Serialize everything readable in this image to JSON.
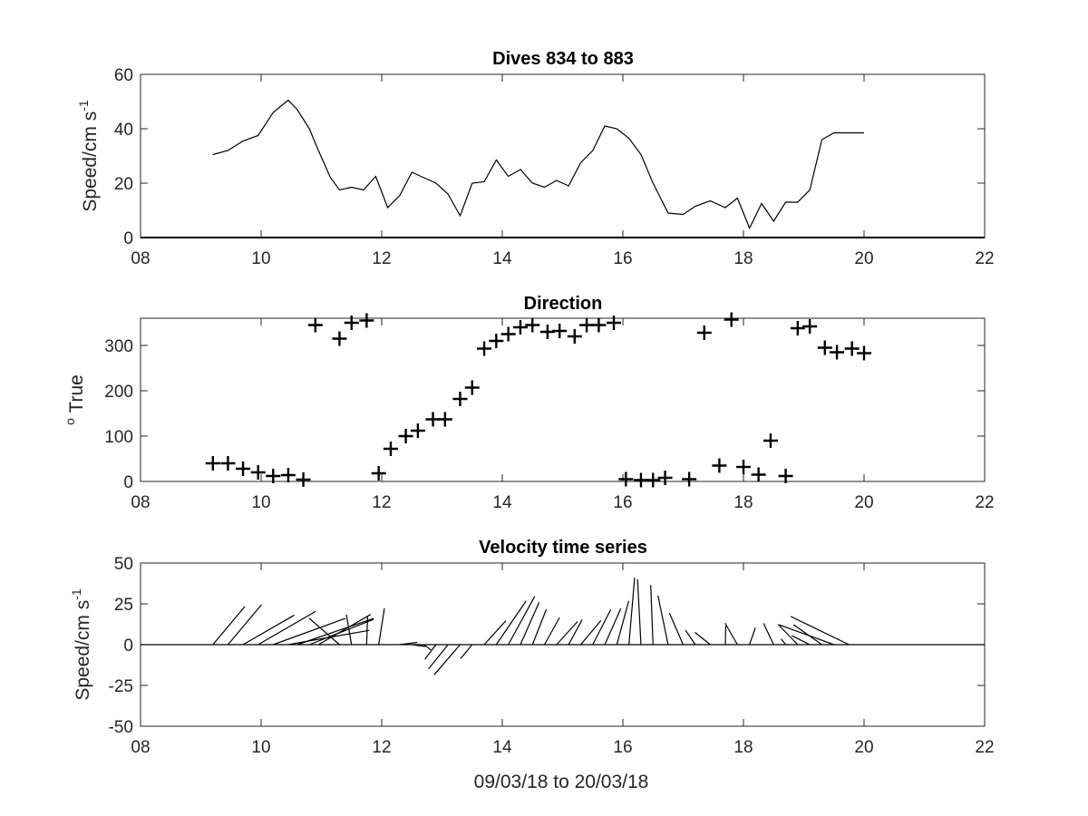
{
  "chart_data": [
    {
      "type": "line",
      "title": "Dives 834 to 883",
      "ylabel_main": "Speed/cm s",
      "ylabel_sup": "-1",
      "xlabel": "",
      "xlim": [
        8,
        22
      ],
      "ylim": [
        0,
        60
      ],
      "xticks": [
        8,
        10,
        12,
        14,
        16,
        18,
        20,
        22
      ],
      "xtick_labels": [
        "08",
        "10",
        "12",
        "14",
        "16",
        "18",
        "20",
        "22"
      ],
      "yticks": [
        0,
        20,
        40,
        60
      ],
      "ytick_labels": [
        "0",
        "20",
        "40",
        "60"
      ],
      "baseline": 0,
      "series": [
        {
          "x": [
            9.2,
            9.45,
            9.7,
            9.95,
            10.2,
            10.45,
            10.6,
            10.8,
            10.95,
            11.15,
            11.3,
            11.5,
            11.7,
            11.9,
            12.1,
            12.3,
            12.5,
            12.7,
            12.9,
            13.1,
            13.3,
            13.5,
            13.7,
            13.9,
            14.1,
            14.3,
            14.5,
            14.7,
            14.9,
            15.1,
            15.3,
            15.5,
            15.7,
            15.9,
            16.1,
            16.3,
            16.5,
            16.75,
            17.0,
            17.2,
            17.45,
            17.7,
            17.9,
            18.1,
            18.3,
            18.5,
            18.7,
            18.9,
            19.1,
            19.3,
            19.5,
            19.75,
            20.0
          ],
          "y": [
            30.5,
            32,
            35.5,
            37.5,
            46,
            50.5,
            47,
            40,
            32,
            22,
            17.5,
            18.5,
            17.5,
            22.5,
            11,
            15.5,
            24,
            22,
            20,
            16,
            8,
            20,
            20.5,
            28.5,
            22.5,
            25,
            20,
            18.5,
            21,
            19,
            27.5,
            32,
            41,
            40,
            36.5,
            30.5,
            20,
            9,
            8.5,
            11.5,
            13.5,
            11,
            14.5,
            3.5,
            12.5,
            6,
            13,
            13,
            17.5,
            36,
            38.5,
            38.5,
            38.5
          ]
        }
      ]
    },
    {
      "type": "scatter",
      "title": "Direction",
      "ylabel_sup": "o",
      "ylabel_main": " True",
      "xlabel": "",
      "xlim": [
        8,
        22
      ],
      "ylim": [
        0,
        360
      ],
      "xticks": [
        8,
        10,
        12,
        14,
        16,
        18,
        20,
        22
      ],
      "xtick_labels": [
        "08",
        "10",
        "12",
        "14",
        "16",
        "18",
        "20",
        "22"
      ],
      "yticks": [
        0,
        100,
        200,
        300
      ],
      "ytick_labels": [
        "0",
        "100",
        "200",
        "300"
      ],
      "marker": "+",
      "series": [
        {
          "x": [
            9.2,
            9.45,
            9.7,
            9.95,
            10.2,
            10.45,
            10.7,
            10.9,
            11.3,
            11.5,
            11.75,
            11.95,
            12.15,
            12.4,
            12.6,
            12.85,
            13.05,
            13.3,
            13.5,
            13.7,
            13.9,
            14.1,
            14.3,
            14.5,
            14.75,
            14.95,
            15.2,
            15.4,
            15.6,
            15.85,
            16.05,
            16.3,
            16.5,
            16.7,
            17.1,
            17.35,
            17.6,
            17.8,
            18.0,
            18.25,
            18.45,
            18.7,
            18.9,
            19.1,
            19.35,
            19.55,
            19.8,
            20.0
          ],
          "y": [
            40,
            40,
            28,
            20,
            12,
            14,
            4,
            345,
            315,
            350,
            355,
            18,
            72,
            100,
            112,
            137,
            137,
            182,
            207,
            293,
            310,
            325,
            340,
            345,
            330,
            332,
            320,
            345,
            345,
            350,
            5,
            3,
            3,
            8,
            5,
            328,
            35,
            357,
            32,
            15,
            90,
            12,
            338,
            342,
            295,
            285,
            293,
            283
          ]
        }
      ]
    },
    {
      "type": "line",
      "subtype": "stick",
      "title": "Velocity time series",
      "ylabel_main": "Speed/cm s",
      "ylabel_sup": "-1",
      "xlabel": "09/03/18 to 20/03/18",
      "xlim": [
        8,
        22
      ],
      "ylim": [
        -50,
        50
      ],
      "xticks": [
        8,
        10,
        12,
        14,
        16,
        18,
        20,
        22
      ],
      "xtick_labels": [
        "08",
        "10",
        "12",
        "14",
        "16",
        "18",
        "20",
        "22"
      ],
      "yticks": [
        -50,
        -25,
        0,
        25,
        50
      ],
      "ytick_labels": [
        "-50",
        "-25",
        "0",
        "25",
        "50"
      ],
      "baseline": 0,
      "series": [
        {
          "x": [
            9.2,
            9.45,
            9.7,
            9.95,
            10.2,
            10.45,
            10.6,
            10.8,
            10.95,
            11.3,
            11.5,
            11.75,
            11.95,
            12.3,
            12.5,
            12.7,
            12.9,
            13.1,
            13.3,
            13.5,
            13.7,
            13.9,
            14.1,
            14.3,
            14.5,
            14.7,
            14.9,
            15.1,
            15.3,
            15.5,
            15.7,
            15.9,
            16.1,
            16.3,
            16.5,
            16.75,
            17.0,
            17.2,
            17.45,
            17.7,
            17.9,
            18.1,
            18.5,
            18.7,
            18.9,
            19.1,
            19.3,
            19.5,
            19.75
          ],
          "u": [
            19.6,
            20.6,
            31.4,
            35.3,
            44.2,
            49.7,
            46.8,
            39.4,
            32.0,
            -18.7,
            -3.2,
            0.6,
            3.5,
            10.7,
            8.3,
            4.4,
            -6.8,
            -12.0,
            -15.9,
            -7.1,
            13.3,
            18.3,
            16.2,
            11.5,
            8.5,
            9.2,
            12.9,
            8.3,
            12.4,
            11.1,
            9.8,
            7.3,
            3.5,
            -2.1,
            -1.4,
            -6.2,
            -8.4,
            -6.0,
            -9.4,
            0.2,
            -7.6,
            3.6,
            -6.2,
            -2.7,
            -12.1,
            -11.1,
            -17.3,
            -33.4,
            -35.7
          ],
          "v": [
            23.4,
            24.5,
            18.1,
            20.4,
            16.1,
            8.8,
            16.1,
            15.5,
            18.5,
            16.3,
            18.4,
            17.5,
            22.3,
            1.4,
            -1.1,
            -3.3,
            -9.0,
            -14.9,
            -18.5,
            -8.6,
            14.7,
            26.8,
            29.6,
            26.0,
            21.6,
            16.6,
            14.2,
            15.3,
            14.8,
            21.6,
            22.1,
            26.8,
            41.0,
            40.0,
            36.5,
            30.0,
            19.3,
            8.9,
            7.5,
            11.5,
            13.2,
            10.4,
            13.1,
            3.5,
            12.5,
            5.5,
            12.2,
            12.1,
            17.3
          ]
        }
      ]
    }
  ]
}
